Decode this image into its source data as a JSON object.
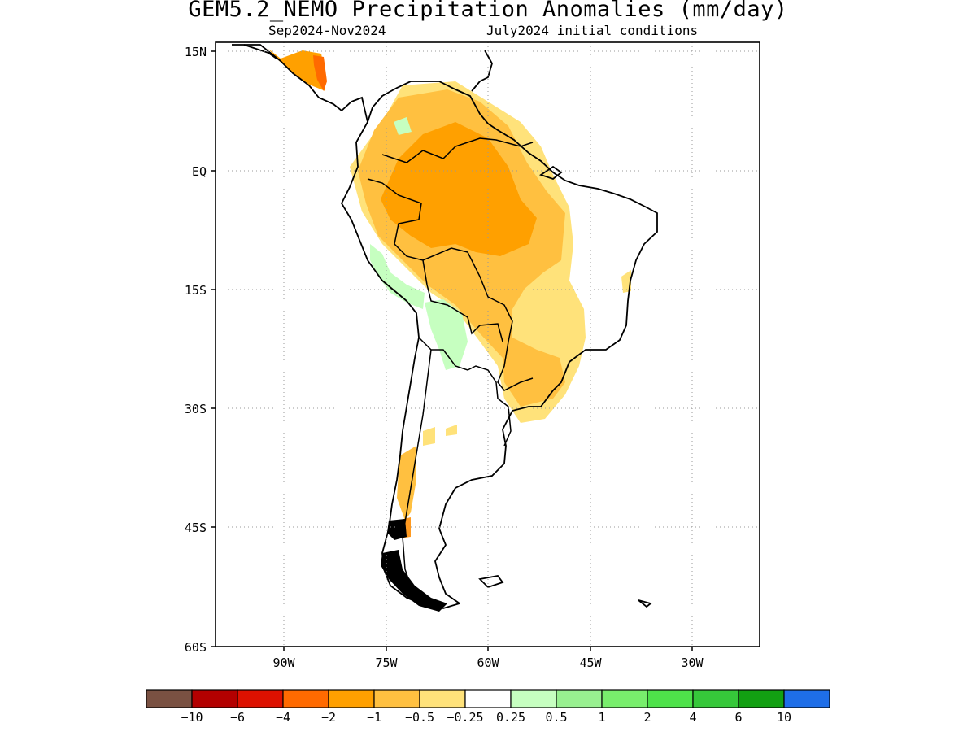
{
  "title": "GEM5.2_NEMO Precipitation Anomalies (mm/day)",
  "subtitle_left": "Sep2024-Nov2024",
  "subtitle_right": "July2024 initial conditions",
  "map": {
    "region": "South America",
    "lat_range": [
      -60,
      15
    ],
    "lon_range": [
      -98,
      -28
    ],
    "lat_ticks": [
      "15N",
      "EQ",
      "15S",
      "30S",
      "45S",
      "60S"
    ],
    "lon_ticks": [
      "90W",
      "75W",
      "60W",
      "45W",
      "30W"
    ],
    "grid": "dotted"
  },
  "colorbar": {
    "labels": [
      "-10",
      "-6",
      "-4",
      "-2",
      "-1",
      "-0.5",
      "-0.25",
      "0.25",
      "0.5",
      "1",
      "2",
      "4",
      "6",
      "10"
    ],
    "colors": [
      "#7a5142",
      "#b30000",
      "#dd1100",
      "#ff6a00",
      "#ffa000",
      "#ffc040",
      "#ffe27a",
      "#ffffff",
      "#c6ffc0",
      "#98f090",
      "#78ee6c",
      "#4ee24a",
      "#36c83a",
      "#12a012",
      "#1e6ee8"
    ]
  }
}
